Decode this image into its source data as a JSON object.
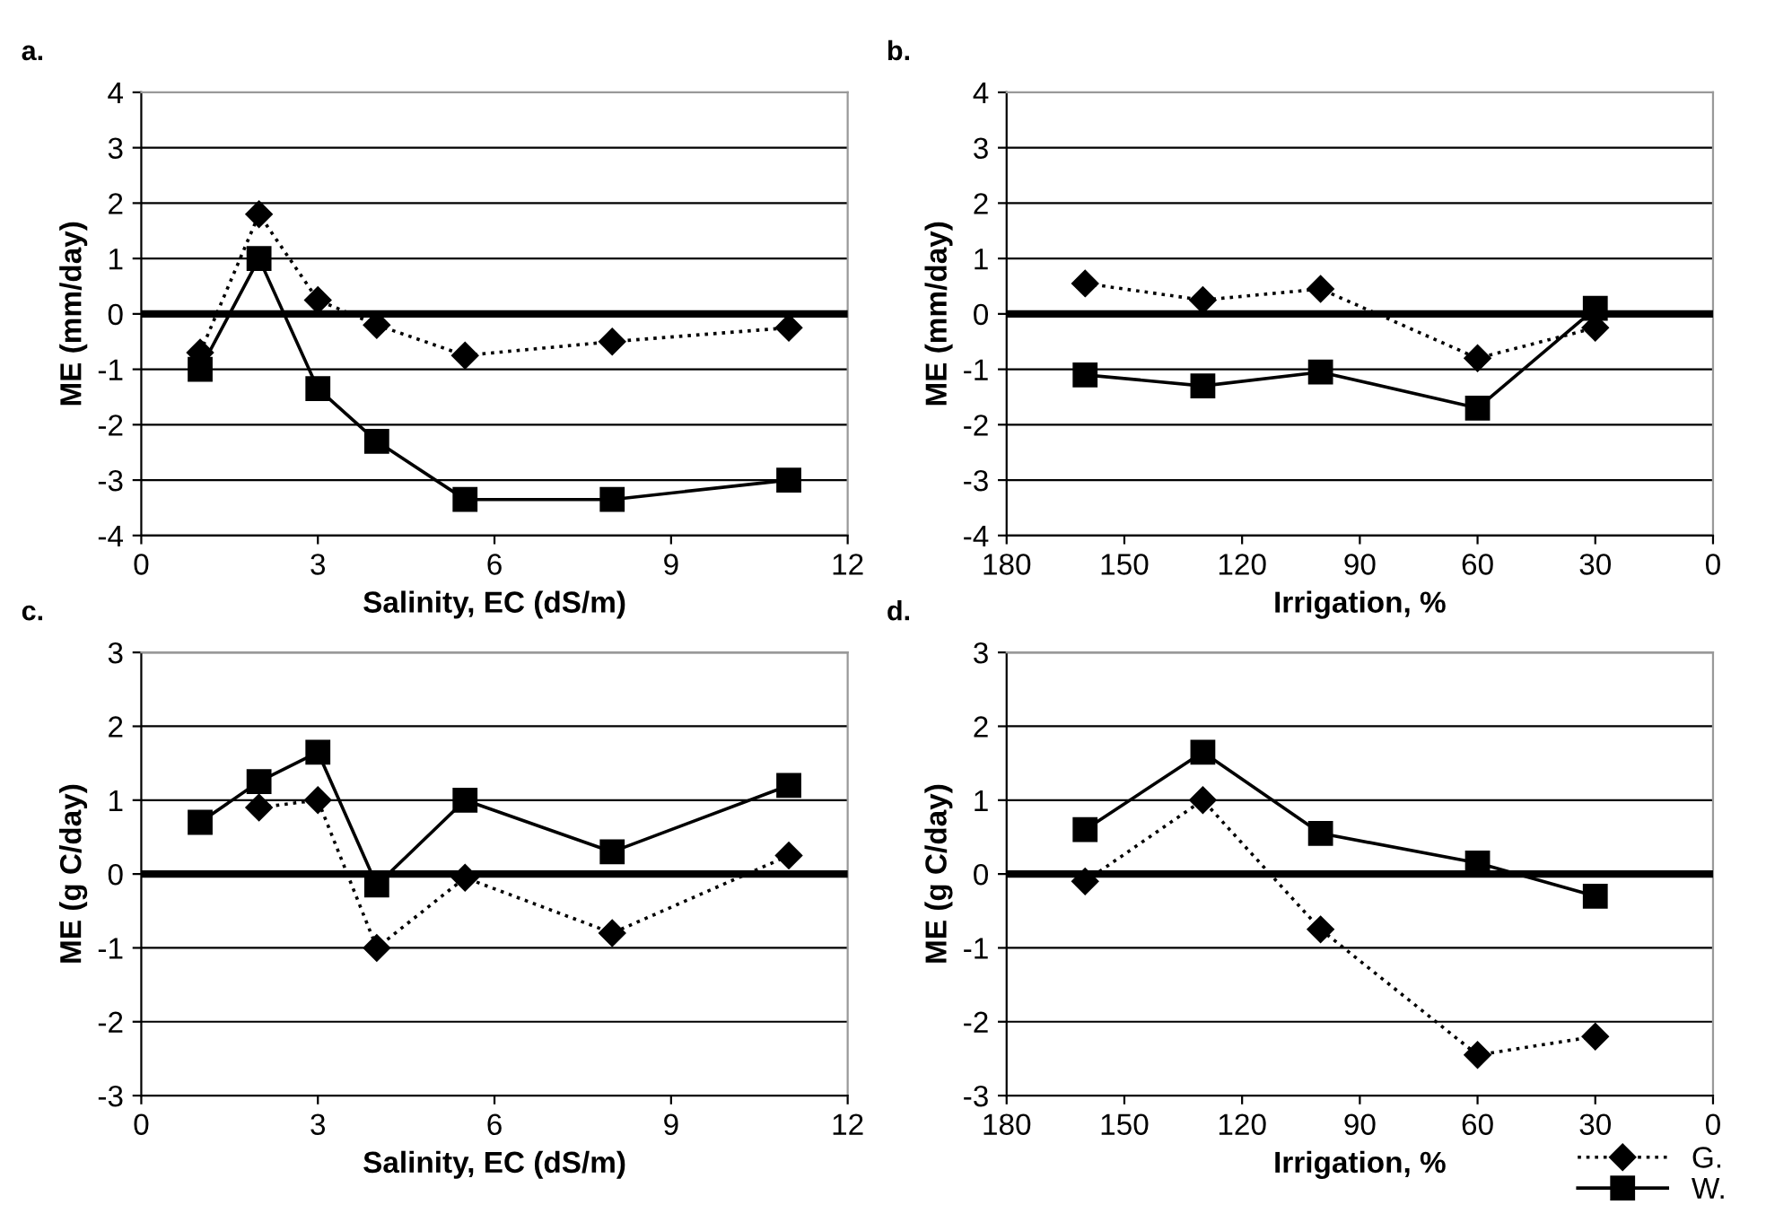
{
  "chart_data": [
    {
      "type": "line",
      "title": "a.",
      "xlabel": "Salinity, EC (dS/m)",
      "ylabel": "ME (mm/day)",
      "x": [
        1,
        2,
        3,
        4,
        5.5,
        8,
        11
      ],
      "xlim": [
        0,
        12
      ],
      "xticks": [
        0,
        3,
        6,
        9,
        12
      ],
      "ylim": [
        -4,
        4
      ],
      "yticks": [
        -4,
        -3,
        -2,
        -1,
        0,
        1,
        2,
        3,
        4
      ],
      "grid": "y",
      "ref_lines": [
        {
          "axis": "y",
          "value": 0
        }
      ],
      "series": [
        {
          "color": "#000000",
          "marker": "diamond",
          "line_style": "dotted",
          "values": [
            -0.7,
            1.8,
            0.25,
            -0.2,
            -0.75,
            -0.5,
            -0.25
          ]
        },
        {
          "color": "#000000",
          "marker": "square",
          "line_style": "solid",
          "values": [
            -1,
            1,
            -1.35,
            -2.3,
            -3.35,
            -3.35,
            -3
          ]
        }
      ]
    },
    {
      "type": "line",
      "title": "b.",
      "xlabel": "Irrigation, %",
      "ylabel": "ME (mm/day)",
      "x": [
        160,
        130,
        100,
        60,
        30
      ],
      "xlim": [
        180,
        0
      ],
      "xticks": [
        180,
        150,
        120,
        90,
        60,
        30,
        0
      ],
      "ylim": [
        -4,
        4
      ],
      "yticks": [
        -4,
        -3,
        -2,
        -1,
        0,
        1,
        2,
        3,
        4
      ],
      "grid": "y",
      "ref_lines": [
        {
          "axis": "y",
          "value": 0
        }
      ],
      "series": [
        {
          "color": "#000000",
          "marker": "diamond",
          "line_style": "dotted",
          "values": [
            0.55,
            0.25,
            0.45,
            -0.8,
            -0.25
          ]
        },
        {
          "color": "#000000",
          "marker": "square",
          "line_style": "solid",
          "values": [
            -1.1,
            -1.3,
            -1.05,
            -1.7,
            0.1
          ]
        }
      ]
    },
    {
      "type": "line",
      "title": "c.",
      "xlabel": "Salinity, EC (dS/m)",
      "ylabel": "ME (g C/day)",
      "x": [
        1,
        2,
        3,
        4,
        5.5,
        8,
        11
      ],
      "xlim": [
        0,
        12
      ],
      "xticks": [
        0,
        3,
        6,
        9,
        12
      ],
      "ylim": [
        -3,
        3
      ],
      "yticks": [
        -3,
        -2,
        -1,
        0,
        1,
        2,
        3
      ],
      "grid": "y",
      "ref_lines": [
        {
          "axis": "y",
          "value": 0
        }
      ],
      "series": [
        {
          "color": "#000000",
          "marker": "diamond",
          "line_style": "dotted",
          "values": [
            null,
            0.9,
            1.0,
            -1.0,
            -0.05,
            -0.8,
            0.25
          ]
        },
        {
          "color": "#000000",
          "marker": "square",
          "line_style": "solid",
          "values": [
            0.7,
            1.25,
            1.65,
            -0.15,
            1.0,
            0.3,
            1.2
          ]
        }
      ]
    },
    {
      "type": "line",
      "title": "d.",
      "xlabel": "Irrigation, %",
      "ylabel": "ME (g C/day)",
      "x": [
        160,
        130,
        100,
        60,
        30
      ],
      "xlim": [
        180,
        0
      ],
      "xticks": [
        180,
        150,
        120,
        90,
        60,
        30,
        0
      ],
      "ylim": [
        -3,
        3
      ],
      "yticks": [
        -3,
        -2,
        -1,
        0,
        1,
        2,
        3
      ],
      "grid": "y",
      "ref_lines": [
        {
          "axis": "y",
          "value": 0
        }
      ],
      "legend": "bottom right",
      "series": [
        {
          "name": "G.",
          "color": "#000000",
          "marker": "diamond",
          "line_style": "dotted",
          "values": [
            -0.1,
            1.0,
            -0.75,
            -2.45,
            -2.2
          ]
        },
        {
          "name": "W.",
          "color": "#000000",
          "marker": "square",
          "line_style": "solid",
          "values": [
            0.6,
            1.65,
            0.55,
            0.15,
            -0.3
          ]
        }
      ]
    }
  ]
}
